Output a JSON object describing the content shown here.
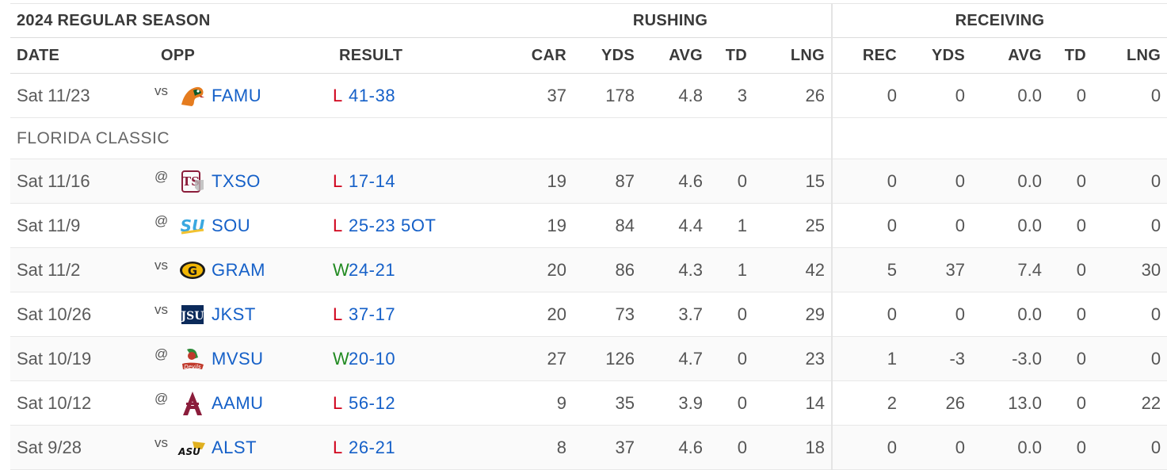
{
  "season_title": "2024 REGULAR SEASON",
  "groups": {
    "rushing": "RUSHING",
    "receiving": "RECEIVING"
  },
  "columns": {
    "date": "DATE",
    "opp": "OPP",
    "result": "RESULT",
    "rush": [
      "CAR",
      "YDS",
      "AVG",
      "TD",
      "LNG"
    ],
    "rec": [
      "REC",
      "YDS",
      "AVG",
      "TD",
      "LNG"
    ]
  },
  "colors": {
    "link": "#1560c8",
    "loss": "#d0021b",
    "win": "#218a21"
  },
  "games": [
    {
      "date": "Sat 11/23",
      "ha": "vs",
      "logo": "famu-rattler-logo",
      "team": "FAMU",
      "wl": "L",
      "score": "41-38",
      "rush": [
        "37",
        "178",
        "4.8",
        "3",
        "26"
      ],
      "rec": [
        "0",
        "0",
        "0.0",
        "0",
        "0"
      ],
      "note": "FLORIDA CLASSIC"
    },
    {
      "date": "Sat 11/16",
      "ha": "@",
      "logo": "txso-logo",
      "team": "TXSO",
      "wl": "L",
      "score": "17-14",
      "rush": [
        "19",
        "87",
        "4.6",
        "0",
        "15"
      ],
      "rec": [
        "0",
        "0",
        "0.0",
        "0",
        "0"
      ]
    },
    {
      "date": "Sat 11/9",
      "ha": "@",
      "logo": "southern-logo",
      "team": "SOU",
      "wl": "L",
      "score": "25-23 5OT",
      "rush": [
        "19",
        "84",
        "4.4",
        "1",
        "25"
      ],
      "rec": [
        "0",
        "0",
        "0.0",
        "0",
        "0"
      ]
    },
    {
      "date": "Sat 11/2",
      "ha": "vs",
      "logo": "grambling-logo",
      "team": "GRAM",
      "wl": "W",
      "score": "24-21",
      "rush": [
        "20",
        "86",
        "4.3",
        "1",
        "42"
      ],
      "rec": [
        "5",
        "37",
        "7.4",
        "0",
        "30"
      ]
    },
    {
      "date": "Sat 10/26",
      "ha": "vs",
      "logo": "jackson-state-logo",
      "team": "JKST",
      "wl": "L",
      "score": "37-17",
      "rush": [
        "20",
        "73",
        "3.7",
        "0",
        "29"
      ],
      "rec": [
        "0",
        "0",
        "0.0",
        "0",
        "0"
      ]
    },
    {
      "date": "Sat 10/19",
      "ha": "@",
      "logo": "mvsu-logo",
      "team": "MVSU",
      "wl": "W",
      "score": "20-10",
      "rush": [
        "27",
        "126",
        "4.7",
        "0",
        "23"
      ],
      "rec": [
        "1",
        "-3",
        "-3.0",
        "0",
        "0"
      ]
    },
    {
      "date": "Sat 10/12",
      "ha": "@",
      "logo": "aamu-logo",
      "team": "AAMU",
      "wl": "L",
      "score": "56-12",
      "rush": [
        "9",
        "35",
        "3.9",
        "0",
        "14"
      ],
      "rec": [
        "2",
        "26",
        "13.0",
        "0",
        "22"
      ]
    },
    {
      "date": "Sat 9/28",
      "ha": "vs",
      "logo": "alst-logo",
      "team": "ALST",
      "wl": "L",
      "score": "26-21",
      "rush": [
        "8",
        "37",
        "4.6",
        "0",
        "18"
      ],
      "rec": [
        "0",
        "0",
        "0.0",
        "0",
        "0"
      ]
    }
  ]
}
